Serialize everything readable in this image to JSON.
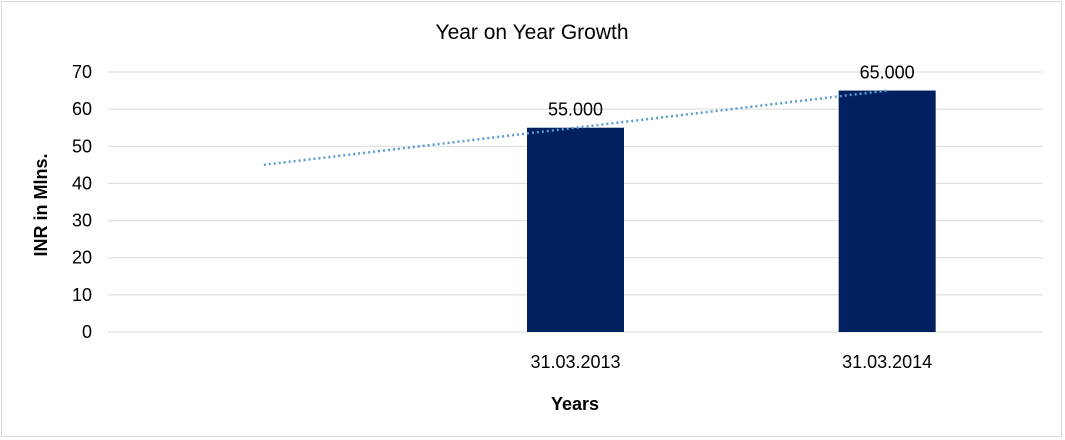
{
  "chart_data": {
    "type": "bar",
    "title": "Year on Year Growth",
    "xlabel": "Years",
    "ylabel": "INR in Mlns.",
    "categories": [
      "",
      "31.03.2013",
      "31.03.2014"
    ],
    "series": [
      {
        "values": [
          null,
          55,
          65
        ],
        "data_labels": [
          "",
          "55.000",
          "65.000"
        ]
      }
    ],
    "trendline": {
      "type": "linear",
      "style": "dotted",
      "start": 45,
      "end": 65
    },
    "ylim": [
      0,
      70
    ],
    "yticks": [
      "0",
      "10",
      "20",
      "30",
      "40",
      "50",
      "60",
      "70"
    ],
    "grid": true,
    "legend": "none",
    "colors": {
      "bar": "#002060",
      "trendline": "#5b9bd5",
      "grid": "#d9d9d9",
      "text": "#000000"
    }
  }
}
